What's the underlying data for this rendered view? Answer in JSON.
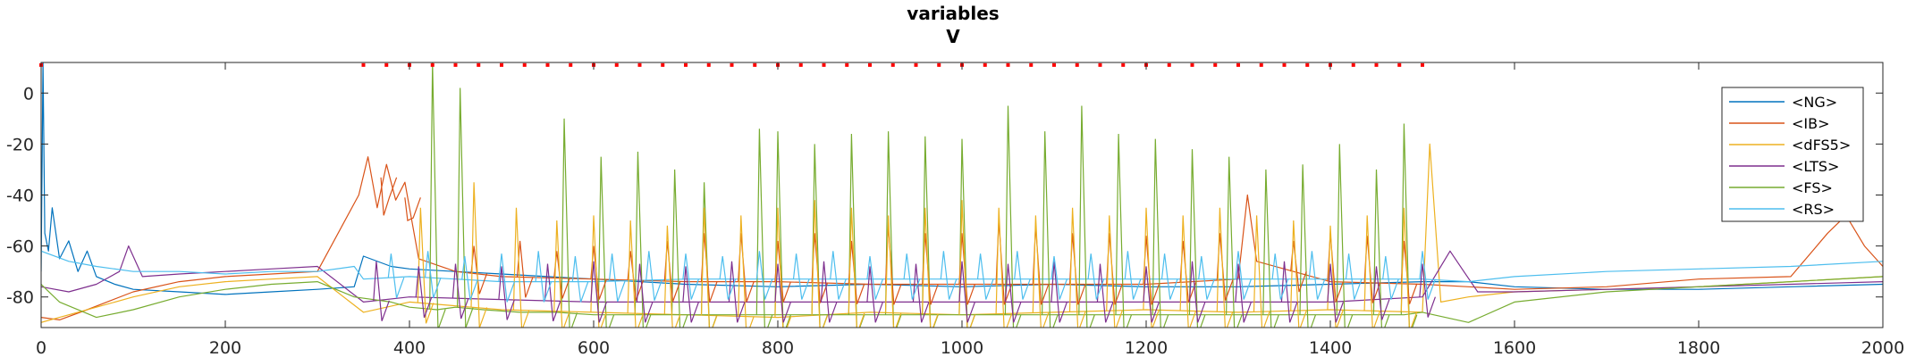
{
  "chart_data": {
    "type": "line",
    "title": "variables",
    "subtitle": "V",
    "xlabel": "",
    "ylabel": "",
    "xlim": [
      0,
      2000
    ],
    "ylim": [
      -92,
      12
    ],
    "xticks": [
      0,
      200,
      400,
      600,
      800,
      1000,
      1200,
      1400,
      1600,
      1800,
      2000
    ],
    "yticks": [
      0,
      -20,
      -40,
      -60,
      -80
    ],
    "grid": false,
    "legend": {
      "placement": "top-right",
      "entries": [
        "<NG>",
        "<IB>",
        "<dFS5>",
        "<LTS>",
        "<FS>",
        "<RS>"
      ]
    },
    "series": [
      {
        "name": "<NG>",
        "color": "#0072BD",
        "x": [
          0,
          2,
          4,
          8,
          12,
          20,
          30,
          40,
          50,
          60,
          80,
          100,
          150,
          200,
          250,
          300,
          340,
          350,
          380,
          400,
          450,
          500,
          550,
          600,
          700,
          800,
          900,
          1000,
          1100,
          1200,
          1300,
          1400,
          1500,
          1550,
          1600,
          1700,
          1800,
          1900,
          2000
        ],
        "y": [
          -70,
          12,
          -55,
          -62,
          -45,
          -65,
          -58,
          -70,
          -62,
          -72,
          -75,
          -77,
          -78,
          -79,
          -78,
          -77,
          -76,
          -64,
          -68,
          -69,
          -70,
          -71,
          -72,
          -73,
          -75,
          -76,
          -75,
          -76,
          -75,
          -76,
          -76,
          -75,
          -74,
          -74,
          -76,
          -77,
          -77,
          -76,
          -75
        ]
      },
      {
        "name": "<IB>",
        "color": "#D95319",
        "x": [
          0,
          20,
          50,
          100,
          150,
          200,
          250,
          300,
          345,
          355,
          365,
          375,
          385,
          395,
          410,
          450,
          500,
          600,
          700,
          800,
          900,
          1000,
          1100,
          1200,
          1300,
          1310,
          1320,
          1400,
          1500,
          1550,
          1600,
          1700,
          1800,
          1900,
          1940,
          1960,
          1980,
          2000
        ],
        "y": [
          -88,
          -89,
          -85,
          -78,
          -74,
          -72,
          -71,
          -70,
          -40,
          -25,
          -45,
          -28,
          -42,
          -35,
          -65,
          -70,
          -72,
          -73,
          -74,
          -74,
          -75,
          -75,
          -75,
          -75,
          -73,
          -40,
          -66,
          -74,
          -75,
          -76,
          -77,
          -76,
          -73,
          -72,
          -55,
          -48,
          -60,
          -68
        ]
      },
      {
        "name": "<dFS5>",
        "color": "#EDB120",
        "x": [
          0,
          20,
          60,
          100,
          150,
          200,
          250,
          300,
          350,
          400,
          500,
          600,
          700,
          800,
          900,
          1000,
          1100,
          1200,
          1300,
          1400,
          1500,
          1508,
          1520,
          1550,
          1600,
          1700,
          1800,
          1900,
          2000
        ],
        "y": [
          -90,
          -88,
          -84,
          -80,
          -76,
          -74,
          -73,
          -72,
          -86,
          -82,
          -85,
          -86,
          -87,
          -88,
          -86,
          -87,
          -86,
          -85,
          -86,
          -85,
          -86,
          -20,
          -82,
          -80,
          -78,
          -77,
          -76,
          -74,
          -72
        ]
      },
      {
        "name": "<LTS>",
        "color": "#7E2F8E",
        "x": [
          0,
          30,
          60,
          85,
          95,
          110,
          150,
          200,
          250,
          300,
          350,
          400,
          500,
          600,
          700,
          800,
          900,
          1000,
          1100,
          1200,
          1300,
          1400,
          1500,
          1530,
          1545,
          1560,
          1600,
          1700,
          1800,
          1900,
          2000
        ],
        "y": [
          -76,
          -78,
          -75,
          -70,
          -60,
          -72,
          -71,
          -70,
          -69,
          -68,
          -82,
          -80,
          -81,
          -82,
          -82,
          -82,
          -82,
          -82,
          -82,
          -82,
          -82,
          -82,
          -80,
          -62,
          -70,
          -78,
          -78,
          -77,
          -76,
          -75,
          -74
        ]
      },
      {
        "name": "<FS>",
        "color": "#77AC30",
        "x": [
          0,
          20,
          60,
          100,
          150,
          200,
          250,
          300,
          340,
          380,
          400,
          430,
          450,
          480,
          520,
          560,
          600,
          650,
          700,
          750,
          800,
          850,
          900,
          950,
          1000,
          1050,
          1100,
          1130,
          1150,
          1200,
          1250,
          1300,
          1350,
          1400,
          1450,
          1480,
          1500,
          1550,
          1600,
          1700,
          1800,
          1900,
          2000
        ],
        "y": [
          -75,
          -82,
          -88,
          -85,
          -80,
          -77,
          -75,
          -74,
          -80,
          -82,
          -84,
          -85,
          -84,
          -85,
          -86,
          -86,
          -87,
          -87,
          -87,
          -87,
          -87,
          -87,
          -87,
          -87,
          -87,
          -87,
          -87,
          -87,
          -87,
          -87,
          -87,
          -87,
          -87,
          -87,
          -87,
          -87,
          -86,
          -90,
          -82,
          -78,
          -76,
          -74,
          -72
        ]
      },
      {
        "name": "<RS>",
        "color": "#4DBEEE",
        "x": [
          0,
          30,
          60,
          100,
          150,
          200,
          250,
          300,
          340,
          350,
          400,
          450,
          500,
          600,
          700,
          800,
          900,
          1000,
          1100,
          1200,
          1300,
          1400,
          1500,
          1550,
          1600,
          1700,
          1800,
          1900,
          2000
        ],
        "y": [
          -62,
          -66,
          -68,
          -70,
          -70,
          -71,
          -70,
          -70,
          -68,
          -73,
          -72,
          -73,
          -74,
          -74,
          -73,
          -73,
          -73,
          -73,
          -73,
          -73,
          -73,
          -73,
          -73,
          -74,
          -72,
          -70,
          -69,
          -68,
          -66
        ]
      }
    ],
    "spikes": [
      {
        "series": "<FS>",
        "x": [
          425,
          455,
          568,
          608,
          648,
          688,
          720,
          780,
          800,
          840,
          880,
          920,
          960,
          1000,
          1050,
          1090,
          1130,
          1170,
          1210,
          1250,
          1290,
          1330,
          1370,
          1410,
          1450,
          1480
        ],
        "y": [
          12,
          2,
          -10,
          -25,
          -23,
          -30,
          -35,
          -14,
          -15,
          -20,
          -16,
          -15,
          -17,
          -18,
          -5,
          -15,
          -5,
          -16,
          -18,
          -22,
          -25,
          -30,
          -28,
          -20,
          -30,
          -12
        ]
      },
      {
        "series": "<IB>",
        "x": [
          372,
          398,
          470,
          520,
          560,
          600,
          640,
          680,
          720,
          760,
          800,
          840,
          880,
          920,
          960,
          1000,
          1040,
          1080,
          1120,
          1160,
          1200,
          1240,
          1280,
          1360,
          1400,
          1440,
          1480
        ],
        "y": [
          -48,
          -50,
          -60,
          -58,
          -62,
          -60,
          -62,
          -58,
          -55,
          -55,
          -58,
          -55,
          -58,
          -52,
          -55,
          -55,
          -50,
          -52,
          -55,
          -55,
          -56,
          -58,
          -55,
          -58,
          -55,
          -56,
          -58
        ]
      },
      {
        "series": "<dFS5>",
        "x": [
          412,
          470,
          516,
          560,
          600,
          640,
          680,
          720,
          760,
          800,
          840,
          880,
          920,
          960,
          1000,
          1040,
          1080,
          1120,
          1160,
          1200,
          1240,
          1280,
          1320,
          1360,
          1400,
          1440,
          1480
        ],
        "y": [
          -45,
          -35,
          -45,
          -50,
          -48,
          -50,
          -52,
          -45,
          -48,
          -45,
          -42,
          -45,
          -48,
          -45,
          -42,
          -45,
          -48,
          -45,
          -48,
          -45,
          -48,
          -45,
          -48,
          -50,
          -52,
          -48,
          -45
        ]
      },
      {
        "series": "<LTS>",
        "x": [
          364,
          410,
          450,
          500,
          550,
          600,
          650,
          700,
          750,
          800,
          850,
          900,
          950,
          1000,
          1050,
          1100,
          1150,
          1200,
          1250,
          1300,
          1350,
          1400,
          1450,
          1500
        ],
        "y": [
          -66,
          -68,
          -67,
          -68,
          -67,
          -66,
          -67,
          -68,
          -66,
          -67,
          -66,
          -68,
          -67,
          -66,
          -67,
          -66,
          -67,
          -68,
          -66,
          -67,
          -66,
          -67,
          -68,
          -67
        ]
      },
      {
        "series": "<RS>",
        "x": [
          380,
          420,
          460,
          500,
          540,
          580,
          620,
          660,
          700,
          740,
          780,
          820,
          860,
          900,
          940,
          980,
          1020,
          1060,
          1100,
          1140,
          1180,
          1220,
          1260,
          1300,
          1340,
          1380,
          1420,
          1460,
          1500
        ],
        "y": [
          -63,
          -62,
          -64,
          -63,
          -62,
          -64,
          -63,
          -62,
          -63,
          -64,
          -62,
          -63,
          -62,
          -64,
          -63,
          -62,
          -63,
          -62,
          -64,
          -63,
          -62,
          -63,
          -64,
          -62,
          -63,
          -62,
          -63,
          -64,
          -62
        ]
      }
    ],
    "markers": {
      "color": "#FF0000",
      "y": 11,
      "x": [
        0,
        350,
        375,
        400,
        425,
        450,
        475,
        500,
        525,
        550,
        575,
        600,
        625,
        650,
        675,
        700,
        725,
        750,
        775,
        800,
        825,
        850,
        875,
        900,
        925,
        950,
        975,
        1000,
        1025,
        1050,
        1075,
        1100,
        1125,
        1150,
        1175,
        1200,
        1225,
        1250,
        1275,
        1300,
        1325,
        1350,
        1375,
        1400,
        1425,
        1450,
        1475,
        1500
      ]
    }
  }
}
